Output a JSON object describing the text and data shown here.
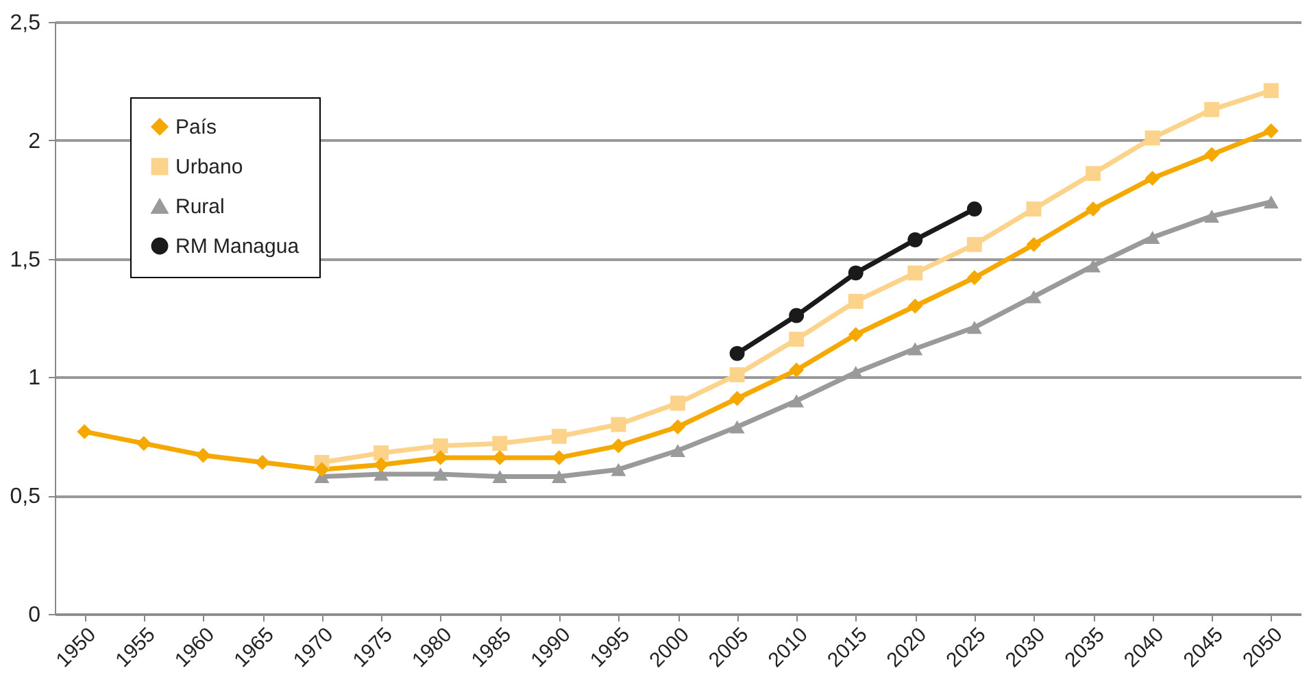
{
  "chart_data": {
    "type": "line",
    "categories": [
      "1950",
      "1955",
      "1960",
      "1965",
      "1970",
      "1975",
      "1980",
      "1985",
      "1990",
      "1995",
      "2000",
      "2005",
      "2010",
      "2015",
      "2020",
      "2025",
      "2030",
      "2035",
      "2040",
      "2045",
      "2050"
    ],
    "series": [
      {
        "name": "País",
        "color": "#f5a800",
        "marker": "diamond",
        "values": [
          0.77,
          0.72,
          0.67,
          0.64,
          0.61,
          0.63,
          0.66,
          0.66,
          0.66,
          0.71,
          0.79,
          0.91,
          1.03,
          1.18,
          1.3,
          1.42,
          1.56,
          1.71,
          1.84,
          1.94,
          2.04
        ]
      },
      {
        "name": "Urbano",
        "color": "#fcd38a",
        "marker": "square",
        "values": [
          null,
          null,
          null,
          null,
          0.64,
          0.68,
          0.71,
          0.72,
          0.75,
          0.8,
          0.89,
          1.01,
          1.16,
          1.32,
          1.44,
          1.56,
          1.71,
          1.86,
          2.01,
          2.13,
          2.21
        ]
      },
      {
        "name": "Rural",
        "color": "#9a9a9a",
        "marker": "triangle",
        "values": [
          null,
          null,
          null,
          null,
          0.58,
          0.59,
          0.59,
          0.58,
          0.58,
          0.61,
          0.69,
          0.79,
          0.9,
          1.02,
          1.12,
          1.21,
          1.34,
          1.47,
          1.59,
          1.68,
          1.74
        ]
      },
      {
        "name": "RM Managua",
        "color": "#1a1a1a",
        "marker": "circle",
        "values": [
          null,
          null,
          null,
          null,
          null,
          null,
          null,
          null,
          null,
          null,
          null,
          1.1,
          1.26,
          1.44,
          1.58,
          1.71,
          null,
          null,
          null,
          null,
          null
        ]
      }
    ],
    "ylim": [
      0,
      2.5
    ],
    "yticks": [
      0,
      {
        "value": 0.5,
        "label": "0,5"
      },
      1,
      {
        "value": 1.5,
        "label": "1,5"
      },
      2,
      {
        "value": 2.5,
        "label": "2,5"
      }
    ],
    "grid": "y",
    "legend": "top left"
  }
}
